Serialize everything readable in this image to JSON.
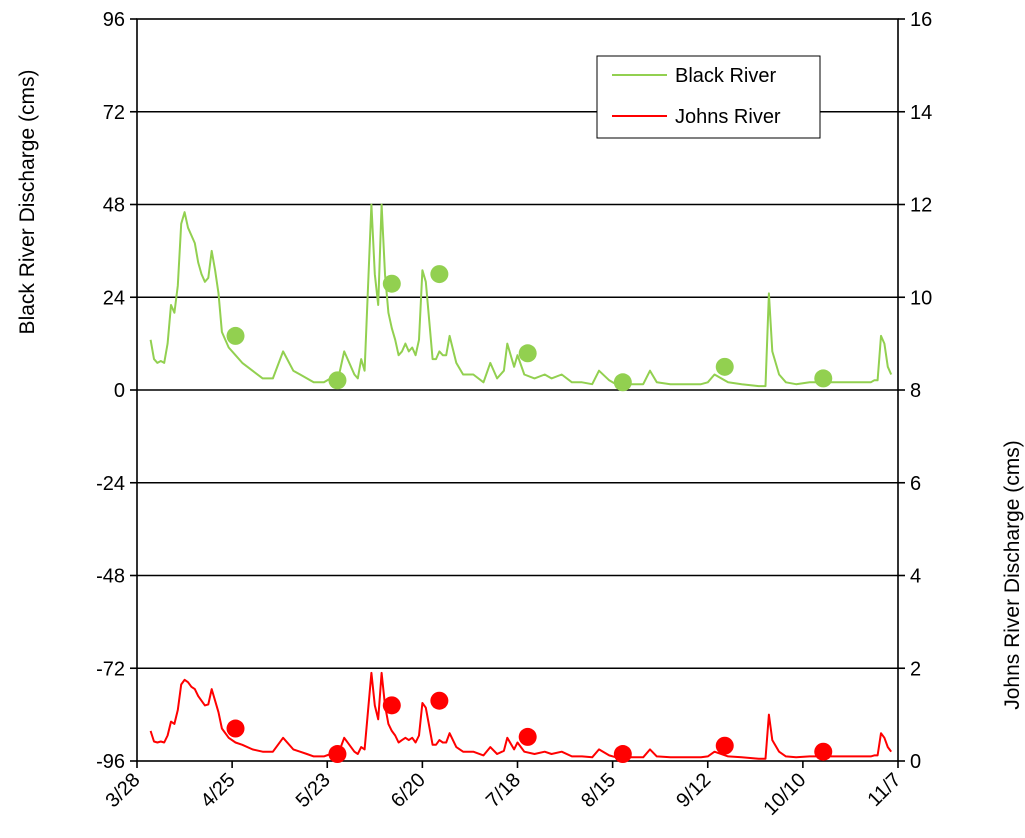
{
  "chart_data": {
    "type": "line",
    "title": "",
    "xlabel": "",
    "ylabel": "Black River Discharge (cms)",
    "y2label": "Johns River Discharge (cms)",
    "y_ticks": [
      "96",
      "72",
      "48",
      "24",
      "0",
      "-24",
      "-48",
      "-72",
      "-96"
    ],
    "y2_ticks": [
      "16",
      "14",
      "12",
      "10",
      "8",
      "6",
      "4",
      "2",
      "0"
    ],
    "x_ticks": [
      "3/28",
      "4/25",
      "5/23",
      "6/20",
      "7/18",
      "8/15",
      "9/12",
      "10/10",
      "11/7"
    ],
    "ylim": [
      -96,
      96
    ],
    "y2lim": [
      0,
      16
    ],
    "xlim": [
      "3/28",
      "11/7"
    ],
    "grid": "horizontal",
    "legend": "top-right",
    "colors": {
      "black_river": "#92D050",
      "johns_river": "#FF0000"
    },
    "series": [
      {
        "name": "Black River",
        "axis": "left",
        "x": [
          "4/1",
          "4/2",
          "4/3",
          "4/4",
          "4/5",
          "4/6",
          "4/7",
          "4/8",
          "4/9",
          "4/10",
          "4/11",
          "4/12",
          "4/13",
          "4/14",
          "4/15",
          "4/16",
          "4/17",
          "4/18",
          "4/19",
          "4/20",
          "4/21",
          "4/22",
          "4/24",
          "4/26",
          "4/28",
          "5/1",
          "5/4",
          "5/7",
          "5/10",
          "5/13",
          "5/15",
          "5/17",
          "5/19",
          "5/22",
          "5/24",
          "5/26",
          "5/28",
          "5/31",
          "6/1",
          "6/2",
          "6/3",
          "6/5",
          "6/6",
          "6/7",
          "6/8",
          "6/9",
          "6/10",
          "6/11",
          "6/12",
          "6/13",
          "6/14",
          "6/15",
          "6/16",
          "6/17",
          "6/18",
          "6/19",
          "6/20",
          "6/21",
          "6/22",
          "6/23",
          "6/24",
          "6/25",
          "6/26",
          "6/27",
          "6/28",
          "6/30",
          "7/2",
          "7/5",
          "7/8",
          "7/10",
          "7/12",
          "7/14",
          "7/15",
          "7/17",
          "7/18",
          "7/20",
          "7/23",
          "7/26",
          "7/28",
          "7/31",
          "8/3",
          "8/6",
          "8/9",
          "8/11",
          "8/14",
          "8/16",
          "8/20",
          "8/24",
          "8/26",
          "8/28",
          "9/1",
          "9/6",
          "9/8",
          "9/10",
          "9/12",
          "9/14",
          "9/18",
          "9/22",
          "9/27",
          "9/29",
          "9/30",
          "10/1",
          "10/3",
          "10/5",
          "10/8",
          "10/12",
          "10/18",
          "10/25",
          "10/30",
          "10/31",
          "11/1",
          "11/2",
          "11/3",
          "11/4",
          "11/5"
        ],
        "values": [
          13,
          8,
          7,
          7.5,
          7,
          12,
          22,
          20,
          27,
          43,
          46,
          42,
          40,
          38,
          33,
          30,
          28,
          29,
          36,
          31,
          25,
          15,
          11,
          9,
          7,
          5,
          3,
          3,
          10,
          5,
          4,
          3,
          2,
          2,
          3,
          2,
          10,
          4,
          3,
          8,
          5,
          48,
          30,
          22,
          48,
          30,
          20,
          16,
          13,
          9,
          10,
          12,
          10,
          11,
          9,
          13,
          31,
          28,
          18,
          8,
          8,
          10,
          9,
          9,
          14,
          7,
          4,
          4,
          2,
          7,
          3,
          5,
          12,
          6,
          9,
          4,
          3,
          4,
          3,
          4,
          2,
          2,
          1.5,
          5,
          2.5,
          1.5,
          1.5,
          1.5,
          5,
          2,
          1.5,
          1.5,
          1.5,
          1.5,
          2,
          4,
          2,
          1.5,
          1,
          1,
          25,
          10,
          4,
          2,
          1.5,
          2,
          2,
          2,
          2,
          2.5,
          2.5,
          14,
          12,
          6,
          4
        ],
        "markers": {
          "x": [
            "4/26",
            "5/26",
            "6/11",
            "6/25",
            "7/21",
            "8/18",
            "9/17",
            "10/16"
          ],
          "values": [
            14,
            2.5,
            27.5,
            30,
            9.5,
            2,
            6,
            3
          ]
        }
      },
      {
        "name": "Johns River",
        "axis": "right",
        "x": [
          "4/1",
          "4/2",
          "4/3",
          "4/4",
          "4/5",
          "4/6",
          "4/7",
          "4/8",
          "4/9",
          "4/10",
          "4/11",
          "4/12",
          "4/13",
          "4/14",
          "4/15",
          "4/16",
          "4/17",
          "4/18",
          "4/19",
          "4/20",
          "4/21",
          "4/22",
          "4/24",
          "4/26",
          "4/28",
          "5/1",
          "5/4",
          "5/7",
          "5/10",
          "5/13",
          "5/15",
          "5/17",
          "5/19",
          "5/22",
          "5/24",
          "5/26",
          "5/28",
          "5/31",
          "6/1",
          "6/2",
          "6/3",
          "6/5",
          "6/6",
          "6/7",
          "6/8",
          "6/9",
          "6/10",
          "6/11",
          "6/12",
          "6/13",
          "6/14",
          "6/15",
          "6/16",
          "6/17",
          "6/18",
          "6/19",
          "6/20",
          "6/21",
          "6/22",
          "6/23",
          "6/24",
          "6/25",
          "6/26",
          "6/27",
          "6/28",
          "6/30",
          "7/2",
          "7/5",
          "7/8",
          "7/10",
          "7/12",
          "7/14",
          "7/15",
          "7/17",
          "7/18",
          "7/20",
          "7/23",
          "7/26",
          "7/28",
          "7/31",
          "8/3",
          "8/6",
          "8/9",
          "8/11",
          "8/14",
          "8/16",
          "8/20",
          "8/24",
          "8/26",
          "8/28",
          "9/1",
          "9/6",
          "9/8",
          "9/10",
          "9/12",
          "9/14",
          "9/18",
          "9/22",
          "9/27",
          "9/29",
          "9/30",
          "10/1",
          "10/3",
          "10/5",
          "10/8",
          "10/12",
          "10/18",
          "10/25",
          "10/30",
          "10/31",
          "11/1",
          "11/2",
          "11/3",
          "11/4",
          "11/5"
        ],
        "values": [
          0.65,
          0.42,
          0.4,
          0.42,
          0.4,
          0.55,
          0.85,
          0.8,
          1.1,
          1.65,
          1.75,
          1.7,
          1.6,
          1.55,
          1.4,
          1.3,
          1.2,
          1.22,
          1.55,
          1.3,
          1.05,
          0.7,
          0.5,
          0.4,
          0.35,
          0.25,
          0.2,
          0.2,
          0.5,
          0.25,
          0.2,
          0.15,
          0.1,
          0.1,
          0.15,
          0.1,
          0.5,
          0.2,
          0.15,
          0.3,
          0.25,
          1.9,
          1.2,
          0.9,
          1.9,
          1.2,
          0.8,
          0.65,
          0.55,
          0.4,
          0.45,
          0.5,
          0.45,
          0.5,
          0.4,
          0.55,
          1.25,
          1.15,
          0.75,
          0.35,
          0.35,
          0.45,
          0.4,
          0.4,
          0.6,
          0.3,
          0.2,
          0.2,
          0.12,
          0.3,
          0.15,
          0.22,
          0.5,
          0.25,
          0.4,
          0.2,
          0.15,
          0.2,
          0.15,
          0.2,
          0.1,
          0.1,
          0.08,
          0.25,
          0.12,
          0.08,
          0.08,
          0.08,
          0.25,
          0.1,
          0.08,
          0.08,
          0.08,
          0.08,
          0.1,
          0.2,
          0.1,
          0.08,
          0.05,
          0.05,
          1.0,
          0.45,
          0.2,
          0.1,
          0.08,
          0.1,
          0.1,
          0.1,
          0.1,
          0.12,
          0.12,
          0.6,
          0.5,
          0.3,
          0.2
        ],
        "markers": {
          "x": [
            "4/26",
            "5/26",
            "6/11",
            "6/25",
            "7/21",
            "8/18",
            "9/17",
            "10/16"
          ],
          "values": [
            0.7,
            0.15,
            1.2,
            1.3,
            0.52,
            0.15,
            0.33,
            0.2
          ]
        }
      }
    ]
  }
}
